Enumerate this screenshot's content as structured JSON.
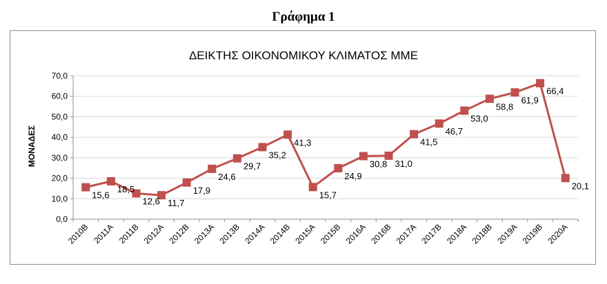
{
  "page": {
    "heading": "Γράφημα 1"
  },
  "chart_data": {
    "type": "line",
    "title": "ΔΕΙΚΤΗΣ ΟΙΚΟΝΟΜΙΚΟΥ ΚΛΙΜΑΤΟΣ ΜΜΕ",
    "xlabel": "",
    "ylabel": "ΜΟΝΑΔΕΣ",
    "ylim": [
      0,
      70
    ],
    "yticks": [
      "0,0",
      "10,0",
      "20,0",
      "30,0",
      "40,0",
      "50,0",
      "60,0",
      "70,0"
    ],
    "grid": true,
    "categories": [
      "2010B",
      "2011A",
      "2011B",
      "2012A",
      "2012B",
      "2013A",
      "2013B",
      "2014A",
      "2014B",
      "2015A",
      "2015B",
      "2016A",
      "2016B",
      "2017A",
      "2017B",
      "2018A",
      "2018B",
      "2019A",
      "2019B",
      "2020A"
    ],
    "series": [
      {
        "values": [
          15.6,
          18.5,
          12.6,
          11.7,
          17.9,
          24.6,
          29.7,
          35.2,
          41.3,
          15.7,
          24.9,
          30.8,
          31.0,
          41.5,
          46.7,
          53.0,
          58.8,
          61.9,
          66.4,
          20.1
        ],
        "labels": [
          "15,6",
          "18,5",
          "12,6",
          "11,7",
          "17,9",
          "24,6",
          "29,7",
          "35,2",
          "41,3",
          "15,7",
          "24,9",
          "30,8",
          "31,0",
          "41,5",
          "46,7",
          "53,0",
          "58,8",
          "61,9",
          "66,4",
          "20,1"
        ],
        "color": "#c0504d"
      }
    ]
  }
}
